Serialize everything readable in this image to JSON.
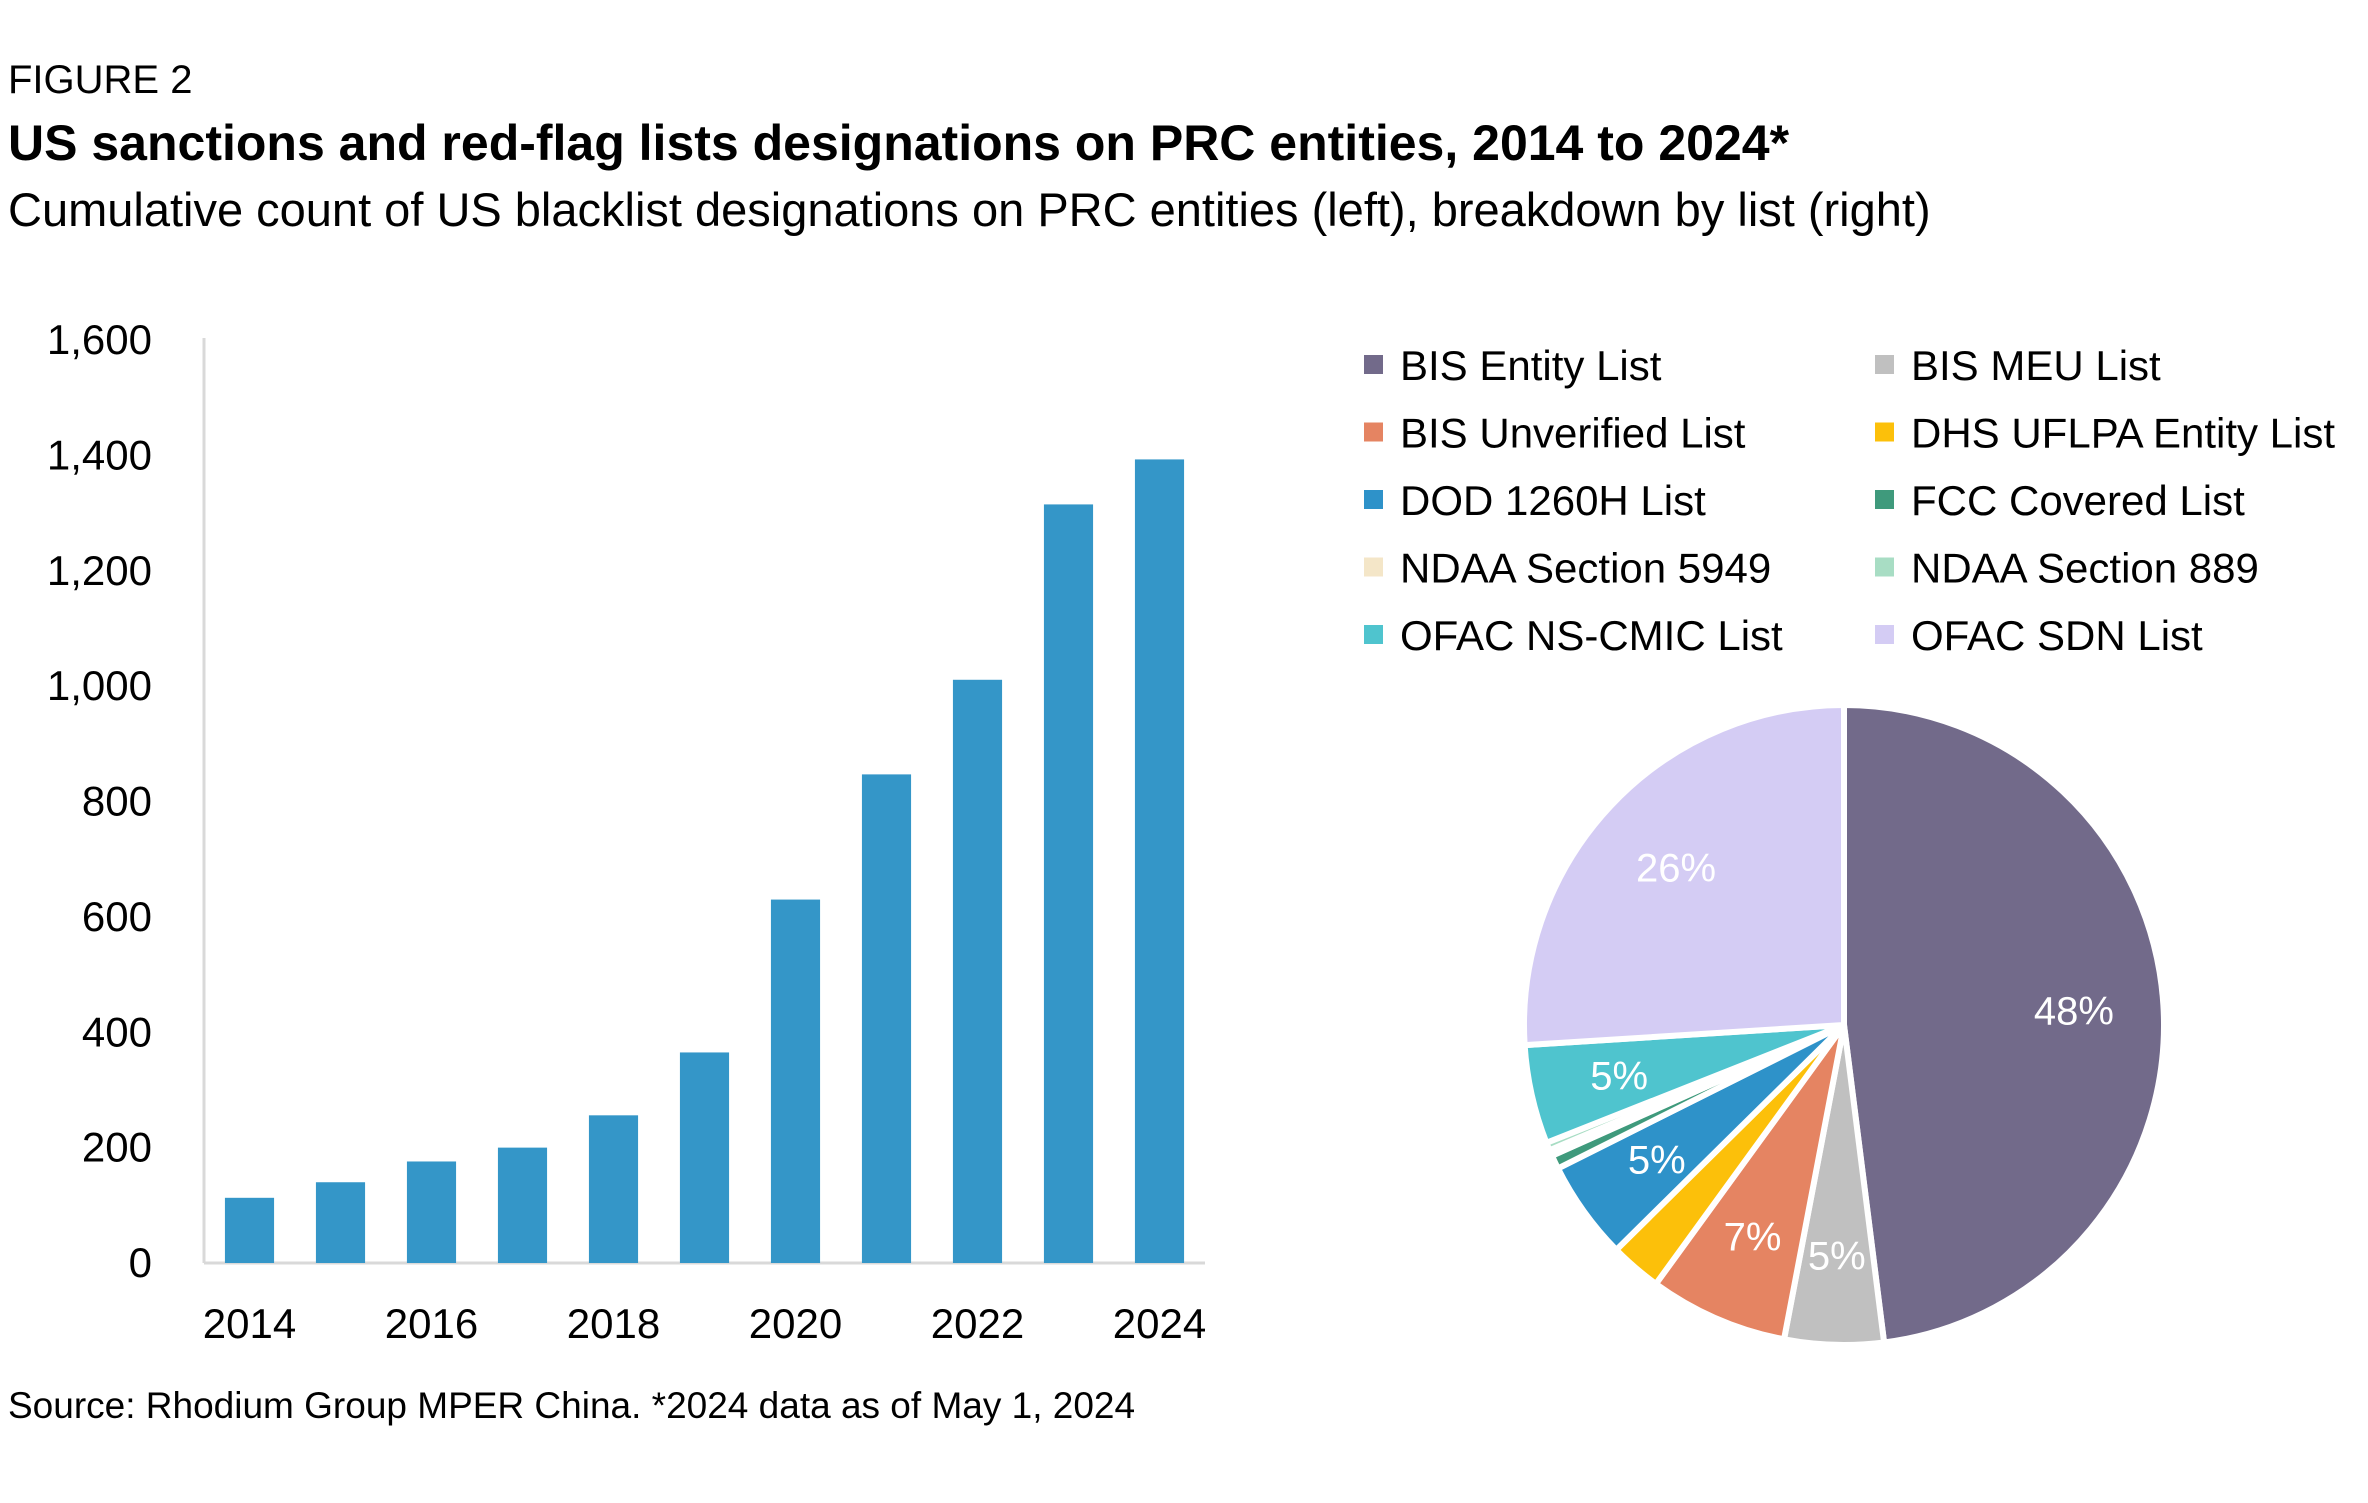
{
  "figure_label": "FIGURE 2",
  "title": "US sanctions and red-flag lists designations on PRC entities, 2014 to 2024*",
  "subtitle": "Cumulative count of US blacklist designations on PRC entities (left), breakdown by list (right)",
  "source": "Source: Rhodium Group MPER China. *2024 data as of May 1, 2024",
  "chart_data": [
    {
      "type": "bar",
      "categories": [
        "2014",
        "2015",
        "2016",
        "2017",
        "2018",
        "2019",
        "2020",
        "2021",
        "2022",
        "2023",
        "2024"
      ],
      "x_tick_labels": [
        "2014",
        "",
        "2016",
        "",
        "2018",
        "",
        "2020",
        "",
        "2022",
        "",
        "2024"
      ],
      "values": [
        113,
        140,
        176,
        200,
        256,
        365,
        630,
        847,
        1011,
        1315,
        1393
      ],
      "ylim": [
        0,
        1600
      ],
      "y_ticks": [
        0,
        200,
        400,
        600,
        800,
        1000,
        1200,
        1400,
        1600
      ],
      "y_tick_labels": [
        "0",
        "200",
        "400",
        "600",
        "800",
        "1,000",
        "1,200",
        "1,400",
        "1,600"
      ],
      "grid": false,
      "color": "#3496C8"
    },
    {
      "type": "pie",
      "legend_position": "top",
      "slices": [
        {
          "name": "BIS Entity List",
          "value": 48,
          "label": "48%",
          "color": "#726A8A"
        },
        {
          "name": "BIS MEU List",
          "value": 5,
          "label": "5%",
          "color": "#C0C0C0"
        },
        {
          "name": "BIS Unverified List",
          "value": 7,
          "label": "7%",
          "color": "#E58462"
        },
        {
          "name": "DHS UFLPA Entity List",
          "value": 2.6,
          "label": "",
          "color": "#FCC00A"
        },
        {
          "name": "DOD 1260H List",
          "value": 5,
          "label": "5%",
          "color": "#2E92C9"
        },
        {
          "name": "FCC Covered List",
          "value": 0.7,
          "label": "",
          "color": "#3F9A7C"
        },
        {
          "name": "NDAA Section 5949",
          "value": 0.3,
          "label": "",
          "color": "#F4E6C8"
        },
        {
          "name": "NDAA Section 889",
          "value": 0.4,
          "label": "",
          "color": "#A8DDC4"
        },
        {
          "name": "OFAC NS-CMIC List",
          "value": 5,
          "label": "5%",
          "color": "#4FC4CE"
        },
        {
          "name": "OFAC SDN List",
          "value": 26,
          "label": "26%",
          "color": "#D4CCF4"
        }
      ]
    }
  ]
}
